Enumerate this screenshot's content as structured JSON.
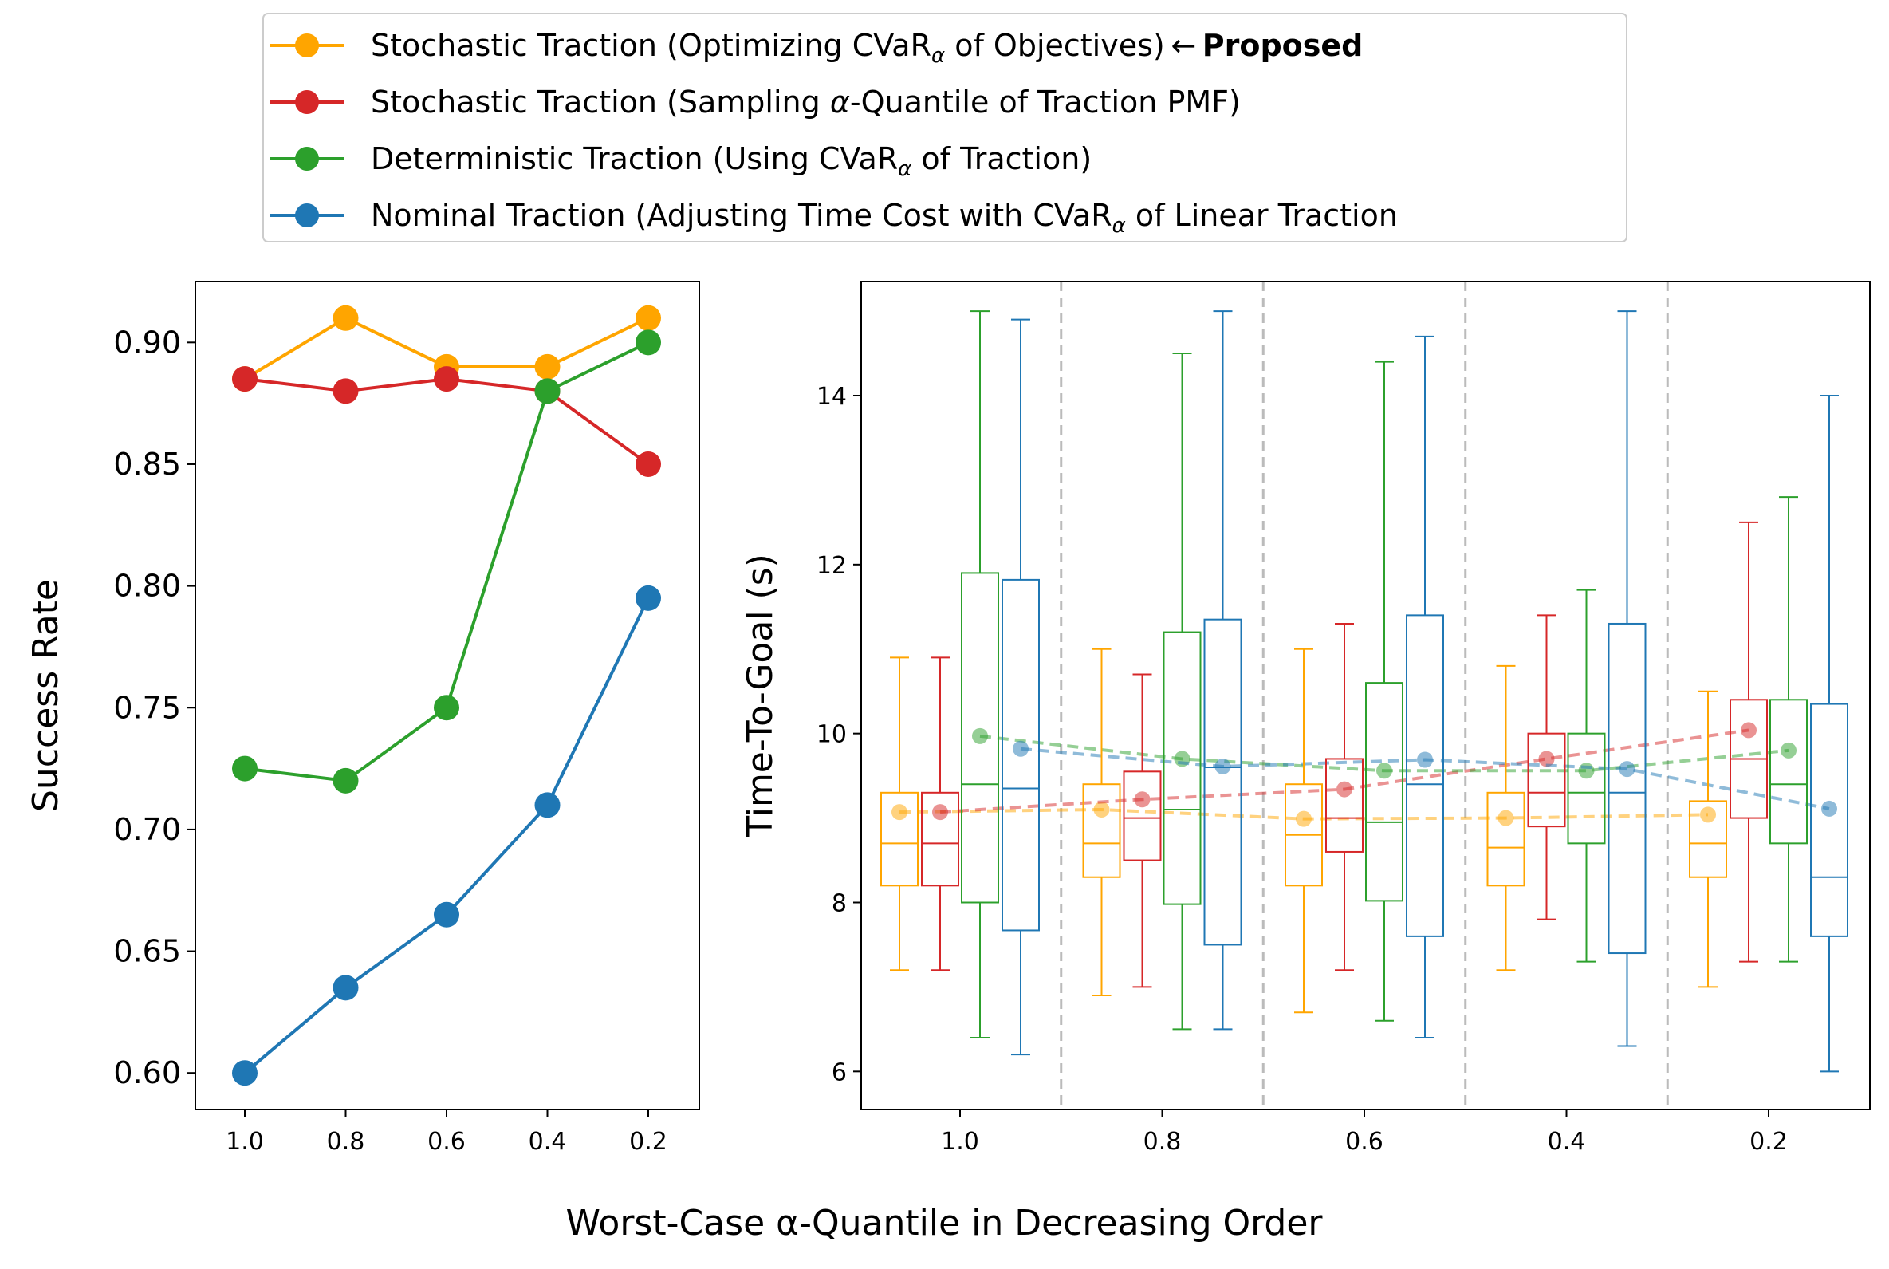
{
  "legend": {
    "items": [
      {
        "parts": [
          "Stochastic Traction (Optimizing CVaR",
          "α",
          " of Objectives) ← "
        ],
        "bold": "Proposed",
        "color": "#ffa500"
      },
      {
        "parts": [
          "Stochastic Traction (Sampling ",
          "α",
          "-Quantile of Traction PMF)"
        ],
        "bold": "",
        "color": "#d62728"
      },
      {
        "parts": [
          "Deterministic Traction (Using CVaR",
          "α",
          " of Traction)"
        ],
        "bold": "",
        "color": "#2ca02c"
      },
      {
        "parts": [
          "Nominal Traction (Adjusting Time Cost with CVaR",
          "α",
          " of Linear Traction"
        ],
        "bold": "",
        "color": "#1f77b4"
      }
    ]
  },
  "xlabel": "Worst-Case α-Quantile in Decreasing Order",
  "chart_data": [
    {
      "type": "line",
      "ylabel": "Success Rate",
      "x": [
        "1.0",
        "0.8",
        "0.6",
        "0.4",
        "0.2"
      ],
      "ylim": [
        0.585,
        0.925
      ],
      "yticks": [
        "0.60",
        "0.65",
        "0.70",
        "0.75",
        "0.80",
        "0.85",
        "0.90"
      ],
      "series": [
        {
          "color": "#ffa500",
          "values": [
            0.885,
            0.91,
            0.89,
            0.89,
            0.91
          ]
        },
        {
          "color": "#d62728",
          "values": [
            0.885,
            0.88,
            0.885,
            0.88,
            0.85
          ]
        },
        {
          "color": "#2ca02c",
          "values": [
            0.725,
            0.72,
            0.75,
            0.88,
            0.9
          ]
        },
        {
          "color": "#1f77b4",
          "values": [
            0.6,
            0.635,
            0.665,
            0.71,
            0.795
          ]
        }
      ]
    },
    {
      "type": "box",
      "ylabel": "Time-To-Goal (s)",
      "categories": [
        "1.0",
        "0.8",
        "0.6",
        "0.4",
        "0.2"
      ],
      "ylim": [
        5.55,
        15.35
      ],
      "yticks": [
        "6",
        "8",
        "10",
        "12",
        "14"
      ],
      "grid": "dashed vertical separators between groups",
      "series": [
        {
          "color": "#ffa500",
          "boxes": [
            {
              "min": 7.2,
              "q1": 8.2,
              "median": 8.7,
              "q3": 9.3,
              "max": 10.9,
              "mean": 9.07
            },
            {
              "min": 6.9,
              "q1": 8.3,
              "median": 8.7,
              "q3": 9.4,
              "max": 11.0,
              "mean": 9.1
            },
            {
              "min": 6.7,
              "q1": 8.2,
              "median": 8.8,
              "q3": 9.4,
              "max": 11.0,
              "mean": 8.99
            },
            {
              "min": 7.2,
              "q1": 8.2,
              "median": 8.65,
              "q3": 9.3,
              "max": 10.8,
              "mean": 9.0
            },
            {
              "min": 7.0,
              "q1": 8.3,
              "median": 8.7,
              "q3": 9.2,
              "max": 10.5,
              "mean": 9.04
            }
          ]
        },
        {
          "color": "#d62728",
          "boxes": [
            {
              "min": 7.2,
              "q1": 8.2,
              "median": 8.7,
              "q3": 9.3,
              "max": 10.9,
              "mean": 9.07
            },
            {
              "min": 7.0,
              "q1": 8.5,
              "median": 9.0,
              "q3": 9.55,
              "max": 10.7,
              "mean": 9.22
            },
            {
              "min": 7.2,
              "q1": 8.6,
              "median": 9.0,
              "q3": 9.7,
              "max": 11.3,
              "mean": 9.34
            },
            {
              "min": 7.8,
              "q1": 8.9,
              "median": 9.3,
              "q3": 10.0,
              "max": 11.4,
              "mean": 9.7
            },
            {
              "min": 7.3,
              "q1": 9.0,
              "median": 9.7,
              "q3": 10.4,
              "max": 12.5,
              "mean": 10.04
            }
          ]
        },
        {
          "color": "#2ca02c",
          "boxes": [
            {
              "min": 6.4,
              "q1": 8.0,
              "median": 9.4,
              "q3": 11.9,
              "max": 15.0,
              "mean": 9.97
            },
            {
              "min": 6.5,
              "q1": 7.98,
              "median": 9.1,
              "q3": 11.2,
              "max": 14.5,
              "mean": 9.7
            },
            {
              "min": 6.6,
              "q1": 8.02,
              "median": 8.95,
              "q3": 10.6,
              "max": 14.4,
              "mean": 9.56
            },
            {
              "min": 7.3,
              "q1": 8.7,
              "median": 9.3,
              "q3": 10.0,
              "max": 11.7,
              "mean": 9.56
            },
            {
              "min": 7.3,
              "q1": 8.7,
              "median": 9.4,
              "q3": 10.4,
              "max": 12.8,
              "mean": 9.8
            }
          ]
        },
        {
          "color": "#1f77b4",
          "boxes": [
            {
              "min": 6.2,
              "q1": 7.67,
              "median": 9.35,
              "q3": 11.82,
              "max": 14.9,
              "mean": 9.82
            },
            {
              "min": 6.5,
              "q1": 7.5,
              "median": 9.6,
              "q3": 11.35,
              "max": 15.0,
              "mean": 9.61
            },
            {
              "min": 6.4,
              "q1": 7.6,
              "median": 9.4,
              "q3": 11.4,
              "max": 14.7,
              "mean": 9.69
            },
            {
              "min": 6.3,
              "q1": 7.4,
              "median": 9.3,
              "q3": 11.3,
              "max": 15.0,
              "mean": 9.58
            },
            {
              "min": 6.0,
              "q1": 7.6,
              "median": 8.3,
              "q3": 10.35,
              "max": 14.0,
              "mean": 9.11
            }
          ]
        }
      ]
    }
  ]
}
